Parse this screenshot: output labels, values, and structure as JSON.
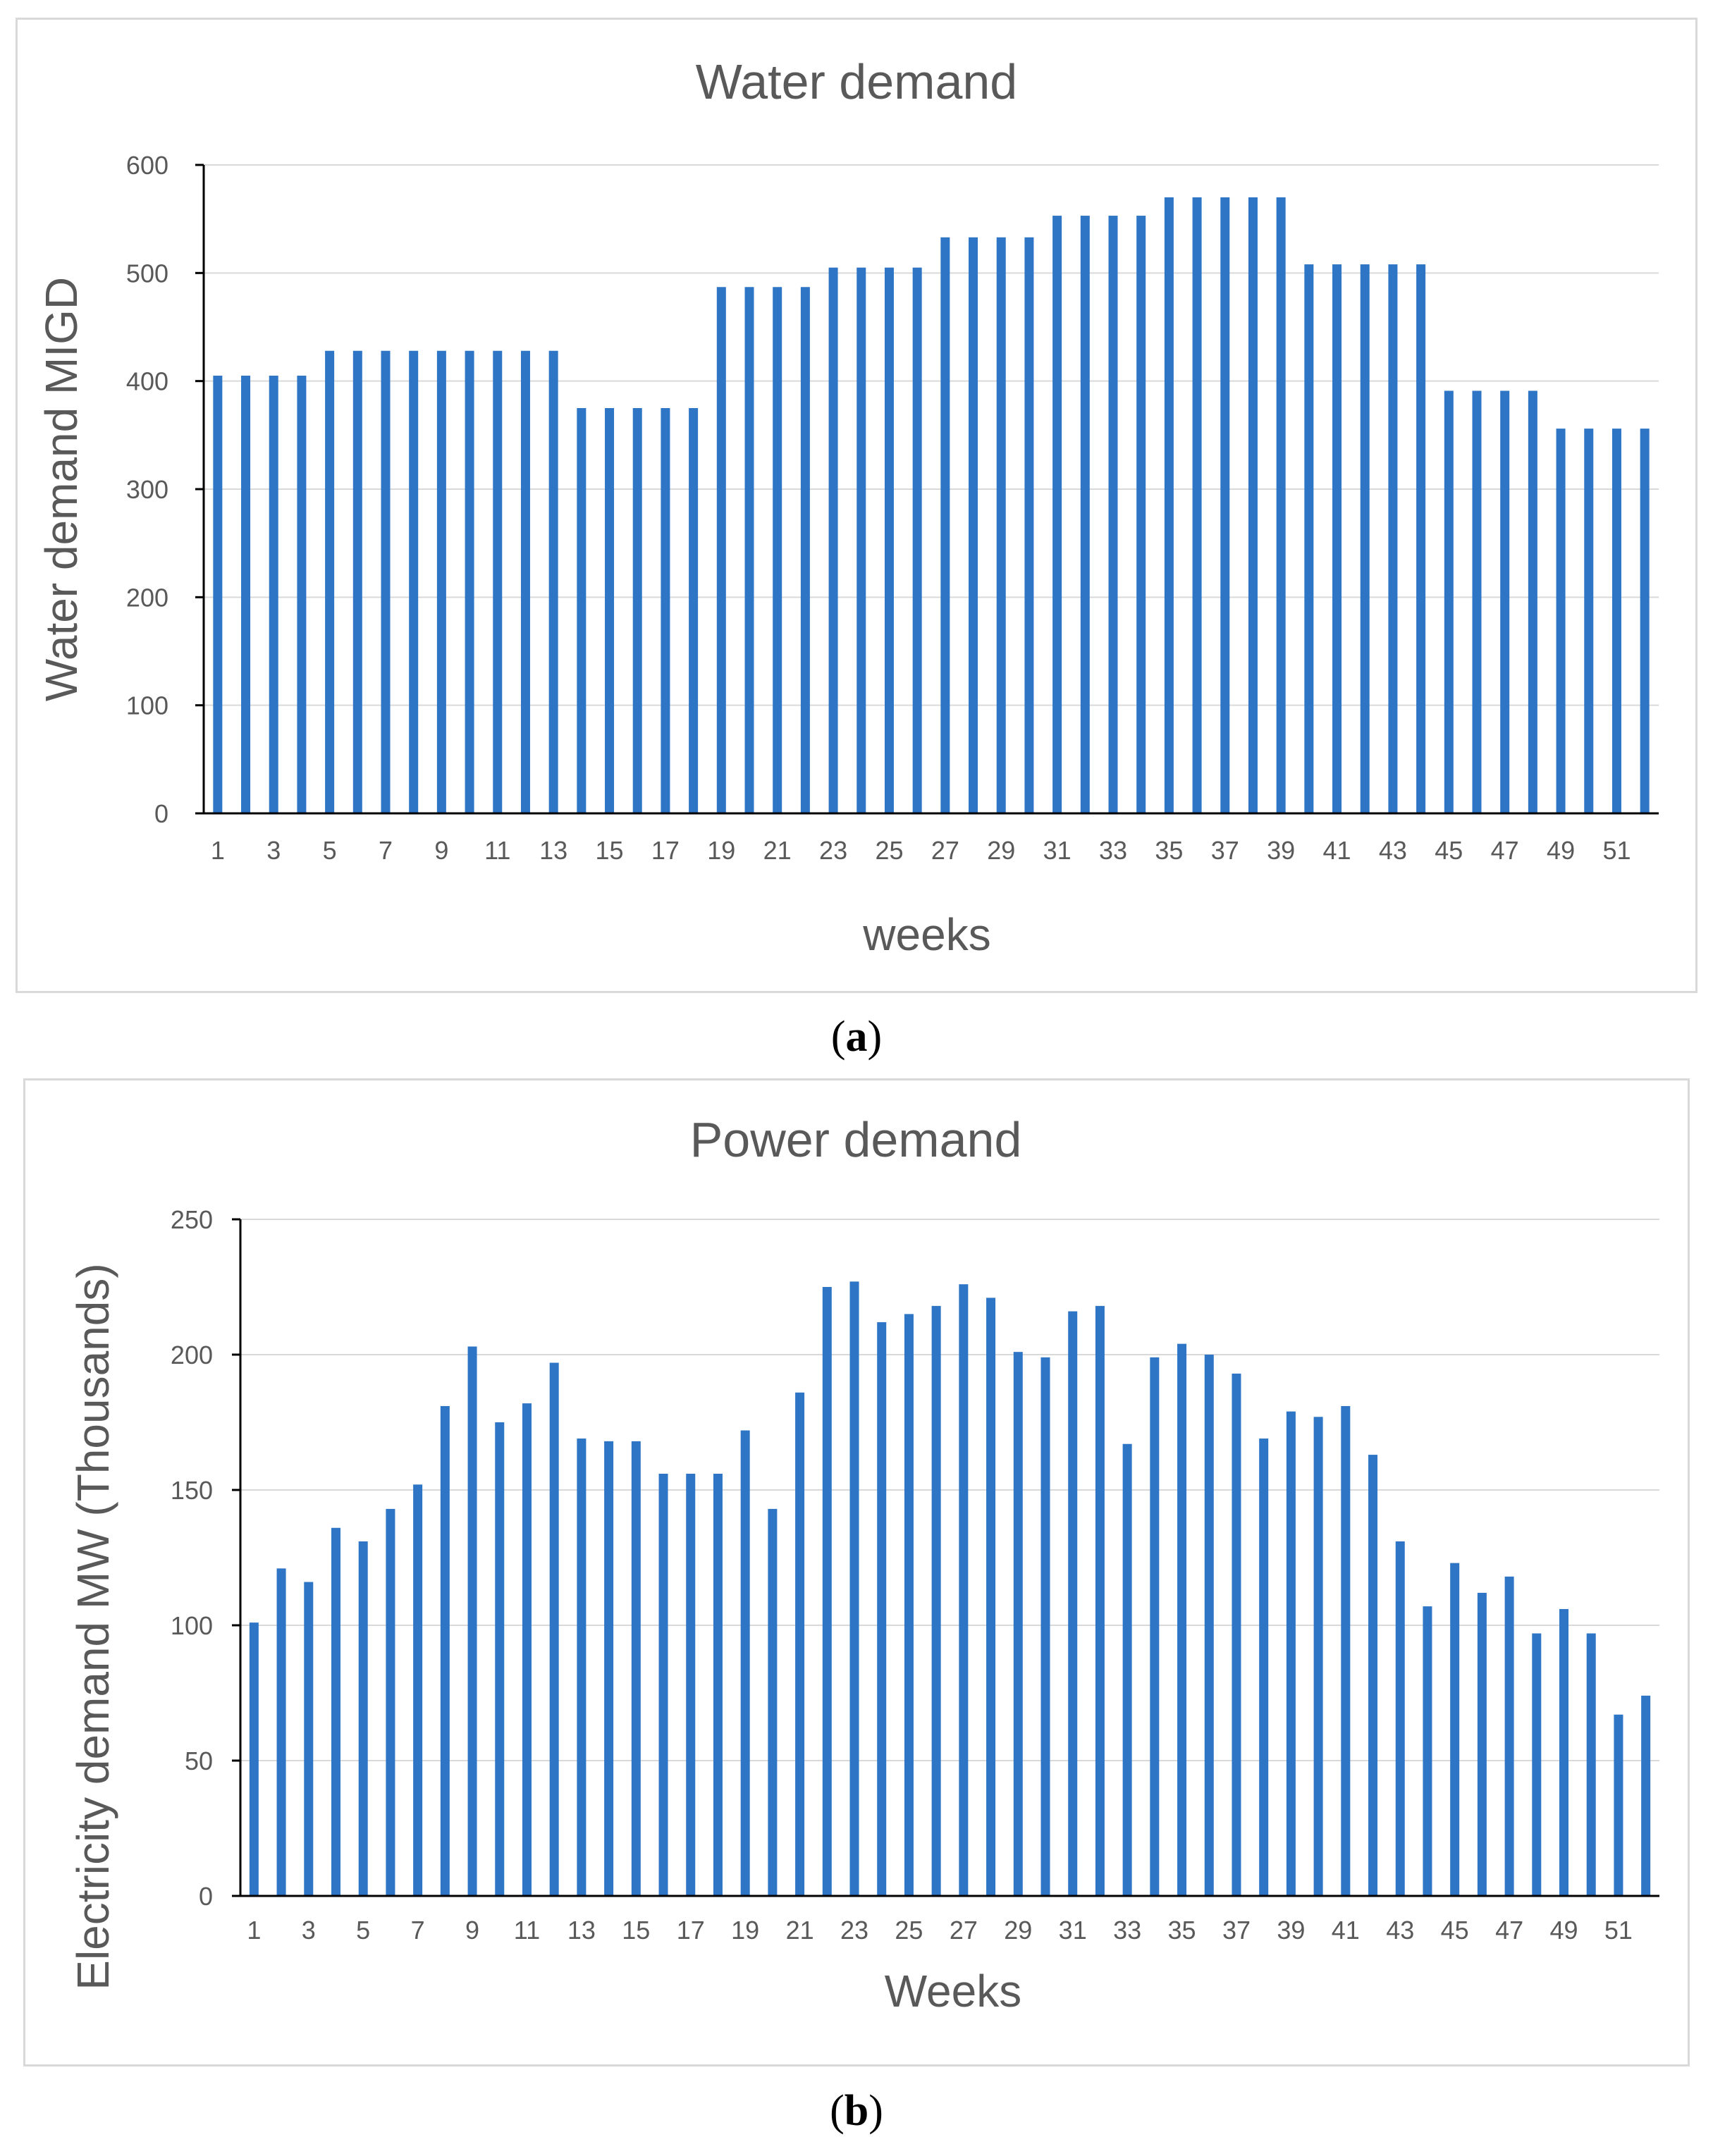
{
  "captions": {
    "a": "a",
    "b": "b"
  },
  "chart_data": [
    {
      "type": "bar",
      "title": "Water demand",
      "xlabel": "weeks",
      "ylabel": "Water demand MIGD",
      "ylim": [
        0,
        600
      ],
      "yticks": [
        0,
        100,
        200,
        300,
        400,
        500,
        600
      ],
      "grid": true,
      "bar_color": "#2e75c5",
      "categories": [
        "1",
        "2",
        "3",
        "4",
        "5",
        "6",
        "7",
        "8",
        "9",
        "10",
        "11",
        "12",
        "13",
        "14",
        "15",
        "16",
        "17",
        "18",
        "19",
        "20",
        "21",
        "22",
        "23",
        "24",
        "25",
        "26",
        "27",
        "28",
        "29",
        "30",
        "31",
        "32",
        "33",
        "34",
        "35",
        "36",
        "37",
        "38",
        "39",
        "40",
        "41",
        "42",
        "43",
        "44",
        "45",
        "46",
        "47",
        "48",
        "49",
        "50",
        "51",
        "52"
      ],
      "xtick_labels": [
        "1",
        "3",
        "5",
        "7",
        "9",
        "11",
        "13",
        "15",
        "17",
        "19",
        "21",
        "23",
        "25",
        "27",
        "29",
        "31",
        "33",
        "35",
        "37",
        "39",
        "41",
        "43",
        "45",
        "47",
        "49",
        "51"
      ],
      "values": [
        405,
        405,
        405,
        405,
        428,
        428,
        428,
        428,
        428,
        428,
        428,
        428,
        428,
        375,
        375,
        375,
        375,
        375,
        487,
        487,
        487,
        487,
        505,
        505,
        505,
        505,
        533,
        533,
        533,
        533,
        553,
        553,
        553,
        553,
        570,
        570,
        570,
        570,
        570,
        508,
        508,
        508,
        508,
        508,
        391,
        391,
        391,
        391,
        356,
        356,
        356,
        356
      ]
    },
    {
      "type": "bar",
      "title": "Power demand",
      "xlabel": "Weeks",
      "ylabel": "Electricity demand MW (Thousands)",
      "ylim": [
        0,
        250
      ],
      "yticks": [
        0,
        50,
        100,
        150,
        200,
        250
      ],
      "grid": true,
      "bar_color": "#2e75c5",
      "categories": [
        "1",
        "2",
        "3",
        "4",
        "5",
        "6",
        "7",
        "8",
        "9",
        "10",
        "11",
        "12",
        "13",
        "14",
        "15",
        "16",
        "17",
        "18",
        "19",
        "20",
        "21",
        "22",
        "23",
        "24",
        "25",
        "26",
        "27",
        "28",
        "29",
        "30",
        "31",
        "32",
        "33",
        "34",
        "35",
        "36",
        "37",
        "38",
        "39",
        "40",
        "41",
        "42",
        "43",
        "44",
        "45",
        "46",
        "47",
        "48",
        "49",
        "50",
        "51",
        "52"
      ],
      "xtick_labels": [
        "1",
        "3",
        "5",
        "7",
        "9",
        "11",
        "13",
        "15",
        "17",
        "19",
        "21",
        "23",
        "25",
        "27",
        "29",
        "31",
        "33",
        "35",
        "37",
        "39",
        "41",
        "43",
        "45",
        "47",
        "49",
        "51"
      ],
      "values": [
        101,
        121,
        116,
        136,
        131,
        143,
        152,
        181,
        203,
        175,
        182,
        197,
        169,
        168,
        168,
        156,
        156,
        156,
        172,
        143,
        186,
        225,
        227,
        212,
        215,
        218,
        226,
        221,
        201,
        199,
        216,
        218,
        167,
        199,
        204,
        200,
        193,
        169,
        179,
        177,
        181,
        163,
        131,
        107,
        123,
        112,
        118,
        97,
        106,
        97,
        67,
        74
      ]
    }
  ]
}
